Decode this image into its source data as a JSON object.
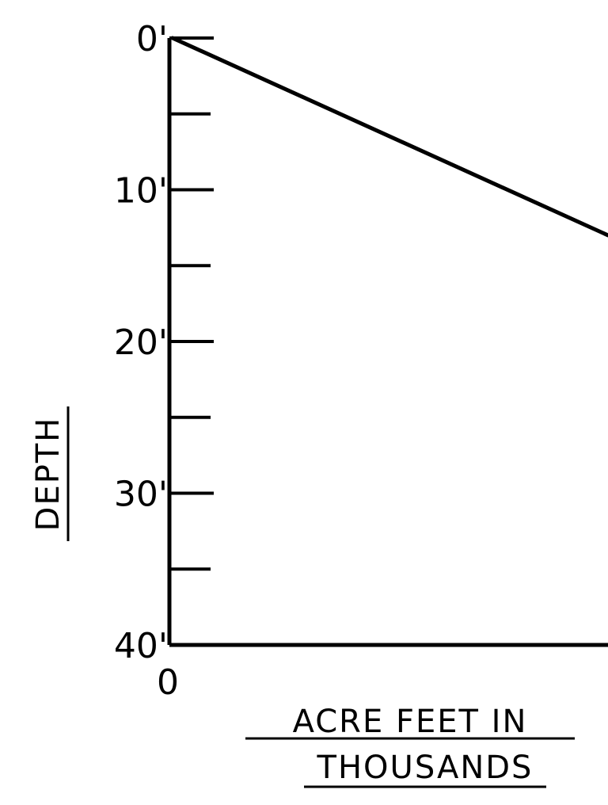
{
  "chart_data": {
    "type": "line",
    "title": "",
    "xlabel": "ACRE FEET IN THOUSANDS",
    "xlabel_lines": [
      "ACRE FEET IN",
      "THOUSANDS"
    ],
    "ylabel": "DEPTH",
    "x_tick_labels": [
      "0"
    ],
    "y_tick_labels": [
      "0'",
      "10'",
      "20'",
      "30'",
      "40'"
    ],
    "y_ticks": [
      0,
      10,
      20,
      30,
      40
    ],
    "y_minor_ticks": [
      5,
      15,
      25,
      35
    ],
    "ylim": [
      0,
      40
    ],
    "y_inverted": true,
    "grid": false,
    "series": [
      {
        "x": [
          0,
          null
        ],
        "y": [
          0,
          13
        ]
      }
    ]
  }
}
